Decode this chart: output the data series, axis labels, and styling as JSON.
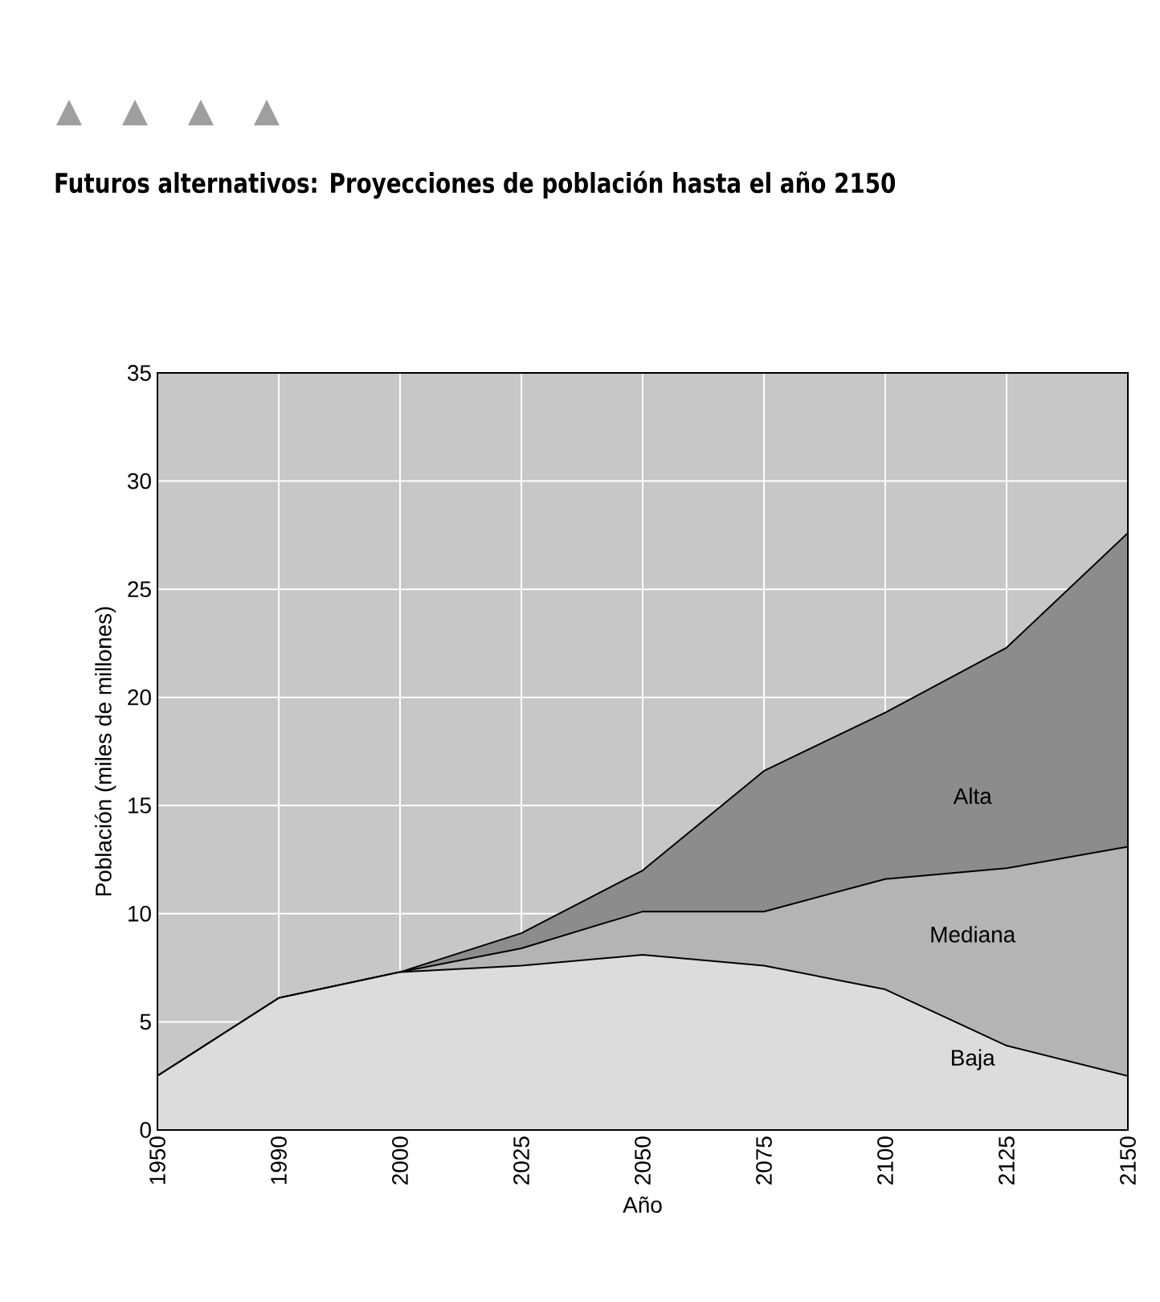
{
  "chart_data": {
    "type": "area",
    "title": "Futuros alternativos: Proyecciones de población hasta el año 2150",
    "xlabel": "Año",
    "ylabel": "Población (miles de millones)",
    "categories": [
      "1950",
      "1990",
      "2000",
      "2025",
      "2050",
      "2075",
      "2100",
      "2125",
      "2150"
    ],
    "series": [
      {
        "name": "Alta",
        "color": "#8c8c8c",
        "values": [
          2.5,
          6.1,
          7.3,
          9.1,
          12.0,
          16.6,
          19.3,
          22.3,
          27.6
        ]
      },
      {
        "name": "Mediana",
        "color": "#b4b4b4",
        "values": [
          2.5,
          6.1,
          7.3,
          8.4,
          10.1,
          10.1,
          11.6,
          12.1,
          13.1
        ]
      },
      {
        "name": "Baja",
        "color": "#dcdcdc",
        "values": [
          2.5,
          6.1,
          7.3,
          7.6,
          8.1,
          7.6,
          6.5,
          3.9,
          2.5
        ]
      }
    ],
    "ylim": [
      0,
      35
    ],
    "yticks": [
      0,
      5,
      10,
      15,
      20,
      25,
      30,
      35
    ],
    "grid": true
  }
}
